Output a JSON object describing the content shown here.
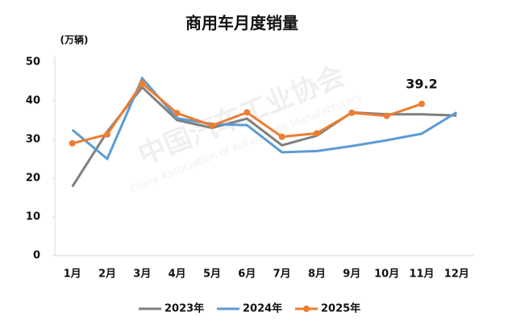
{
  "chart_data": {
    "type": "line",
    "title": "商用车月度销量",
    "y_axis_label": "(万辆)",
    "categories": [
      "1月",
      "2月",
      "3月",
      "4月",
      "5月",
      "6月",
      "7月",
      "8月",
      "9月",
      "10月",
      "11月",
      "12月"
    ],
    "series": [
      {
        "name": "2023年",
        "color": "#7f7f7f",
        "markers": false,
        "values": [
          17.8,
          32,
          43.5,
          35,
          33,
          35.4,
          28.5,
          31,
          37,
          36.5,
          36.5,
          36.2
        ]
      },
      {
        "name": "2024年",
        "color": "#5b9bd5",
        "markers": false,
        "values": [
          32.5,
          25,
          45.8,
          35.5,
          34,
          33.7,
          26.7,
          27,
          28.3,
          29.8,
          31.5,
          37
        ]
      },
      {
        "name": "2025年",
        "color": "#ed7d31",
        "markers": true,
        "values": [
          29,
          31.3,
          44.5,
          36.8,
          33.6,
          37,
          30.7,
          31.6,
          36.9,
          36.1,
          39.2,
          null
        ]
      }
    ],
    "labelled_points": [
      "chart_data.series.2.values.10"
    ],
    "ylim": [
      0,
      50
    ],
    "yticks": [
      0,
      10,
      20,
      30,
      40,
      50
    ],
    "grid": false,
    "watermark": [
      "中国汽车工业协会",
      "China Association of Automobile Manufacturers"
    ]
  }
}
